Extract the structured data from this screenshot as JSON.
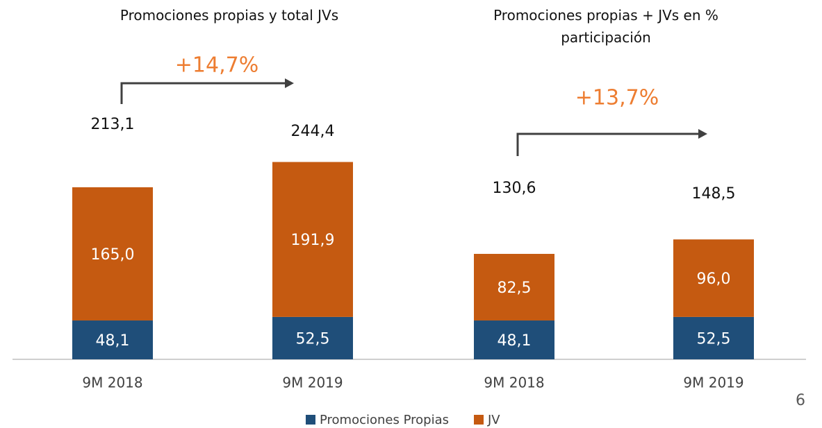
{
  "chart_data": [
    {
      "type": "stacked-bar",
      "title": "Promociones propias y total JVs",
      "categories": [
        "9M 2018",
        "9M 2019"
      ],
      "series": [
        {
          "name": "Promociones Propias",
          "color": "#1f4e79",
          "values": [
            48.1,
            52.5
          ],
          "value_labels": [
            "48,1",
            "52,5"
          ]
        },
        {
          "name": "JV",
          "color": "#c55a11",
          "values": [
            165.0,
            191.9
          ],
          "value_labels": [
            "165,0",
            "191,9"
          ]
        }
      ],
      "totals": [
        213.1,
        244.4
      ],
      "total_labels": [
        "213,1",
        "244,4"
      ],
      "annotation": "+14,7%",
      "annotation_color": "#ed7d31",
      "ylim": [
        0,
        250
      ]
    },
    {
      "type": "stacked-bar",
      "title": "Promociones propias + JVs en  % participación",
      "categories": [
        "9M 2018",
        "9M 2019"
      ],
      "series": [
        {
          "color": "#1f4e79",
          "values": [
            48.1,
            52.5
          ],
          "value_labels": [
            "48,1",
            "52,5"
          ]
        },
        {
          "color": "#c55a11",
          "values": [
            82.5,
            96.0
          ],
          "value_labels": [
            "82,5",
            "96,0"
          ]
        }
      ],
      "totals": [
        130.6,
        148.5
      ],
      "total_labels": [
        "130,6",
        "148,5"
      ],
      "annotation": "+13,7%",
      "annotation_color": "#ed7d31",
      "ylim": [
        0,
        250
      ]
    }
  ],
  "page_number": "6"
}
